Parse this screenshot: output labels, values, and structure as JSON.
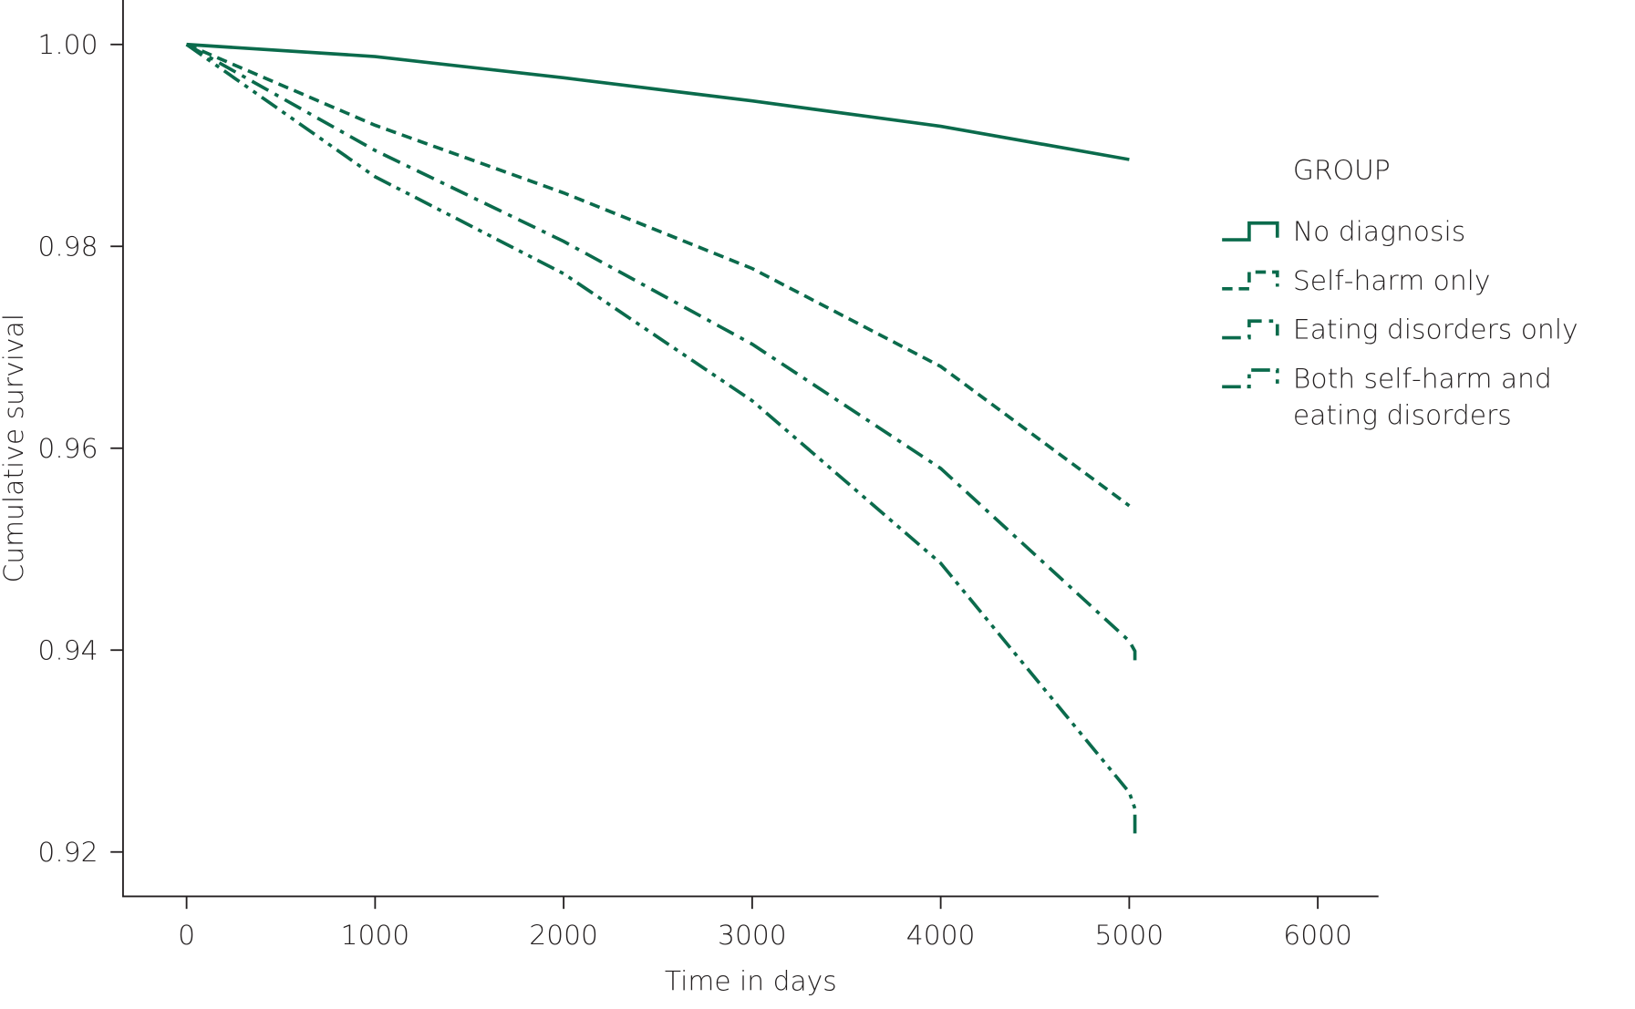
{
  "chart_data": {
    "type": "line",
    "x_label": "Time in days",
    "y_label": "Cumulative survival",
    "legend_title": "GROUP",
    "legend": "right",
    "grid": false,
    "xlim": [
      -337,
      6322
    ],
    "ylim": [
      0.9156,
      1.0044
    ],
    "xticks": [
      0,
      1000,
      2000,
      3000,
      4000,
      5000,
      6000
    ],
    "yticks": [
      {
        "value": 0.92,
        "label": "0.92"
      },
      {
        "value": 0.94,
        "label": "0.94"
      },
      {
        "value": 0.96,
        "label": "0.96"
      },
      {
        "value": 0.98,
        "label": "0.98"
      },
      {
        "value": 1.0,
        "label": "1.00"
      }
    ],
    "series": [
      {
        "name": "No diagnosis",
        "color": "#0b6b4c",
        "linestyle": "solid",
        "x": [
          0,
          1000,
          2000,
          3000,
          4000,
          5000
        ],
        "values": [
          1.0,
          0.9988,
          0.9967,
          0.9944,
          0.9919,
          0.9886
        ]
      },
      {
        "name": "Self-harm only",
        "color": "#0b6b4c",
        "linestyle": "dashed",
        "x": [
          0,
          1000,
          2000,
          3000,
          4000,
          5000
        ],
        "values": [
          1.0,
          0.992,
          0.9853,
          0.9778,
          0.9681,
          0.9543
        ]
      },
      {
        "name": "Eating disorders only",
        "color": "#0b6b4c",
        "linestyle": "dashdot",
        "x": [
          0,
          1000,
          2000,
          3000,
          4000,
          5000,
          5030,
          5030
        ],
        "values": [
          1.0,
          0.9895,
          0.9805,
          0.9703,
          0.958,
          0.9409,
          0.9399,
          0.939
        ]
      },
      {
        "name": "Both self-harm and eating disorders",
        "color": "#0b6b4c",
        "linestyle": "dashdotdot",
        "x": [
          0,
          1000,
          2000,
          3000,
          4000,
          5000,
          5030,
          5030
        ],
        "values": [
          1.0,
          0.9869,
          0.9773,
          0.9647,
          0.9486,
          0.9259,
          0.9243,
          0.9218
        ]
      }
    ]
  }
}
